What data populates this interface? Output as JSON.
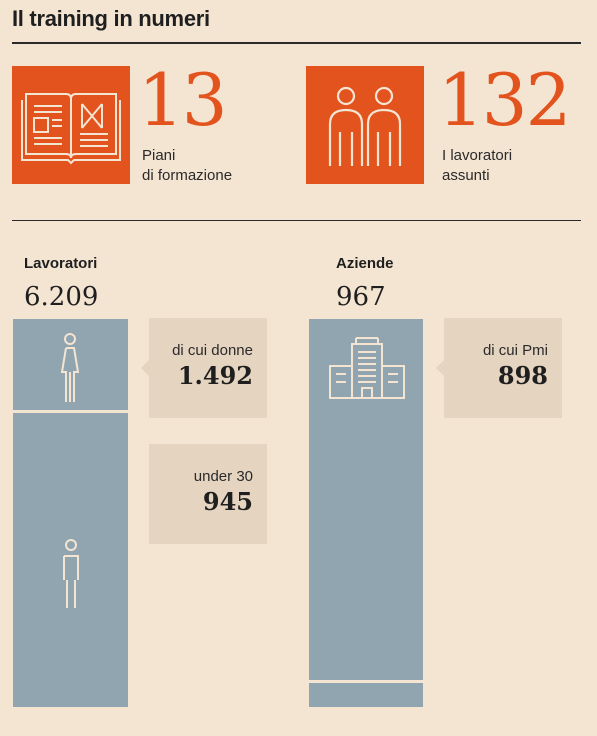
{
  "title": "Il training in numeri",
  "stats": [
    {
      "icon": "book-icon",
      "value": "13",
      "label": "Piani\ndi formazione"
    },
    {
      "icon": "people-icon",
      "value": "132",
      "label": "I lavoratori\nassunti"
    }
  ],
  "colors": {
    "accent": "#e2531e",
    "bar": "#91a5b1",
    "background": "#f4e5d3",
    "callout": "#e5d4c0"
  },
  "chart_data": [
    {
      "type": "bar",
      "title": "Lavoratori",
      "total": 6209,
      "total_label": "6.209",
      "segments": [
        {
          "label": "di cui donne",
          "value": 1492,
          "value_label": "1.492"
        },
        {
          "label": "under 30",
          "value": 945,
          "value_label": "945"
        }
      ]
    },
    {
      "type": "bar",
      "title": "Aziende",
      "total": 967,
      "total_label": "967",
      "segments": [
        {
          "label": "di cui Pmi",
          "value": 898,
          "value_label": "898"
        }
      ]
    }
  ]
}
